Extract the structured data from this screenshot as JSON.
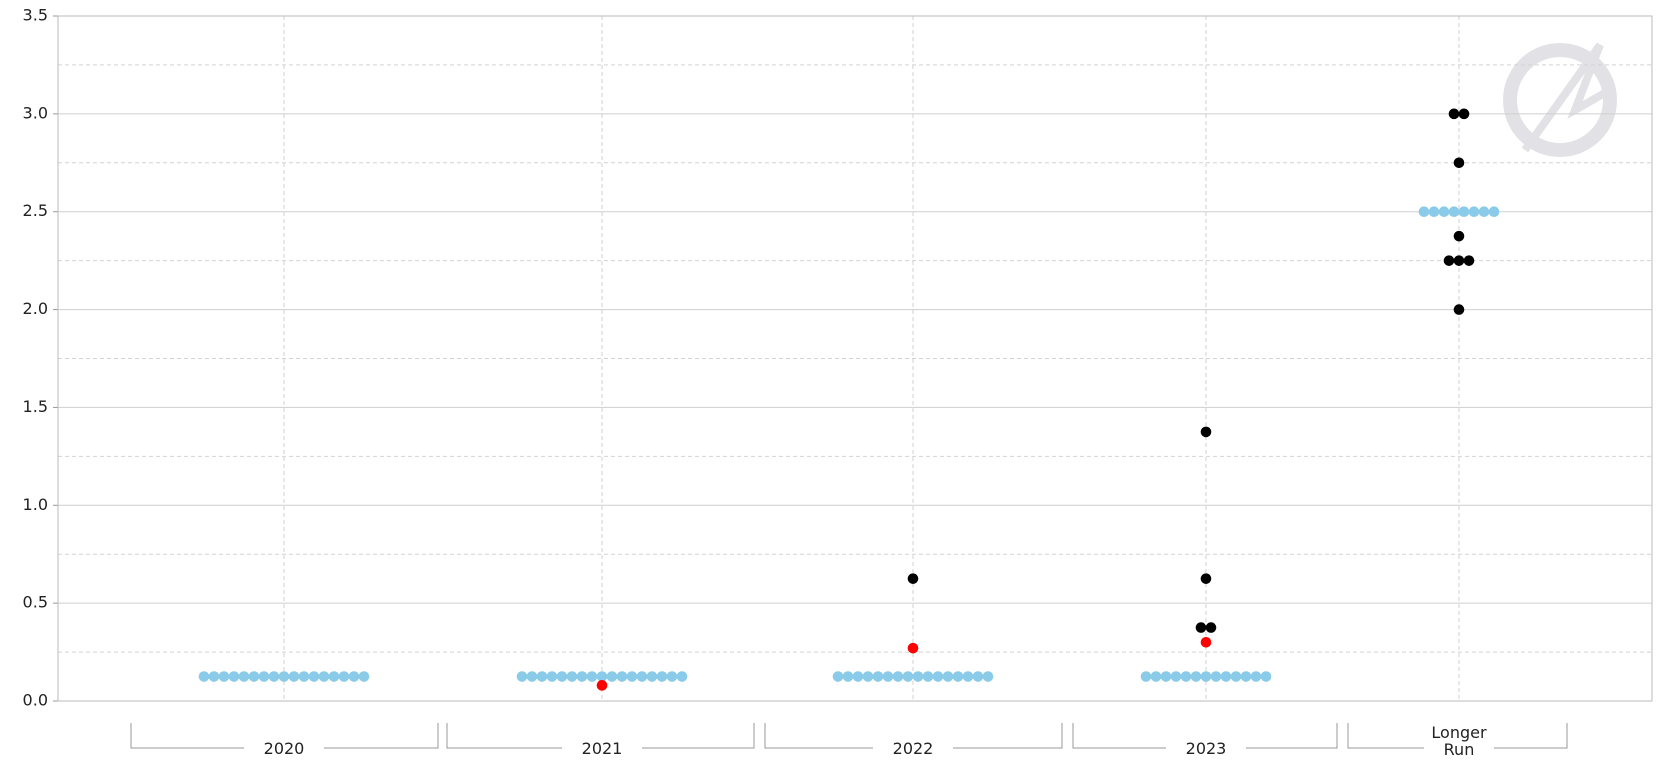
{
  "chart_data": {
    "type": "dot",
    "categories": [
      "2020",
      "2021",
      "2022",
      "2023",
      "Longer Run"
    ],
    "series": [
      {
        "color": "#89cbe9",
        "values": [
          [
            0.125,
            0.125,
            0.125,
            0.125,
            0.125,
            0.125,
            0.125,
            0.125,
            0.125,
            0.125,
            0.125,
            0.125,
            0.125,
            0.125,
            0.125,
            0.125,
            0.125
          ],
          [
            0.125,
            0.125,
            0.125,
            0.125,
            0.125,
            0.125,
            0.125,
            0.125,
            0.125,
            0.125,
            0.125,
            0.125,
            0.125,
            0.125,
            0.125,
            0.125,
            0.125
          ],
          [
            0.125,
            0.125,
            0.125,
            0.125,
            0.125,
            0.125,
            0.125,
            0.125,
            0.125,
            0.125,
            0.125,
            0.125,
            0.125,
            0.125,
            0.125,
            0.125
          ],
          [
            0.125,
            0.125,
            0.125,
            0.125,
            0.125,
            0.125,
            0.125,
            0.125,
            0.125,
            0.125,
            0.125,
            0.125,
            0.125
          ],
          [
            2.5,
            2.5,
            2.5,
            2.5,
            2.5,
            2.5,
            2.5,
            2.5
          ]
        ]
      },
      {
        "color": "#ff0000",
        "values": [
          [],
          [
            0.08
          ],
          [
            0.27
          ],
          [
            0.3
          ],
          []
        ]
      },
      {
        "color": "#000000",
        "values": [
          [],
          [],
          [
            0.625
          ],
          [
            0.375,
            0.375,
            0.625,
            1.375
          ],
          [
            3.0,
            3.0,
            2.75,
            2.375,
            2.25,
            2.25,
            2.25,
            2.0
          ]
        ]
      }
    ],
    "ylim": [
      0,
      3.5
    ],
    "yticks": [
      {
        "value": 0,
        "label": "0.0"
      },
      {
        "value": 0.5,
        "label": "0.5"
      },
      {
        "value": 1,
        "label": "1.0"
      },
      {
        "value": 1.5,
        "label": "1.5"
      },
      {
        "value": 2,
        "label": "2.0"
      },
      {
        "value": 2.5,
        "label": "2.5"
      },
      {
        "value": 3,
        "label": "3.0"
      },
      {
        "value": 3.5,
        "label": "3.5"
      }
    ],
    "yticks_minor": [
      0.25,
      0.75,
      1.25,
      1.75,
      2.25,
      2.75,
      3.25
    ],
    "grid": true
  }
}
